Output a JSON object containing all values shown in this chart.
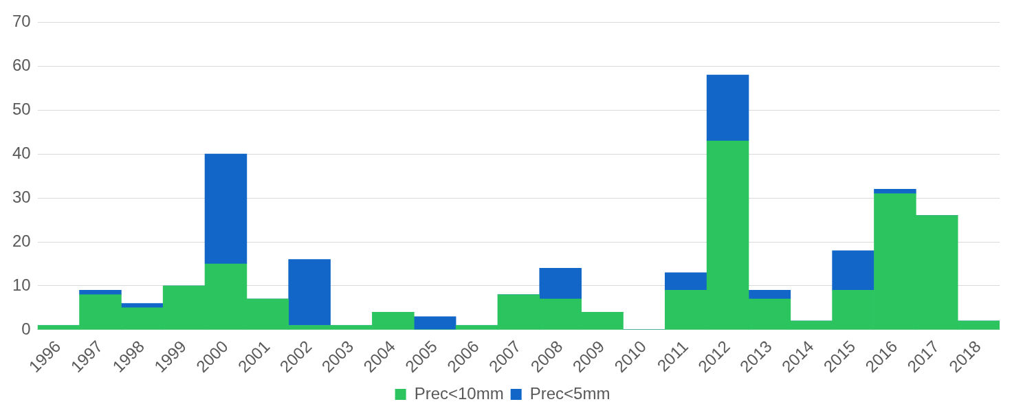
{
  "chart_data": {
    "type": "bar",
    "stacked": true,
    "categories": [
      "1996",
      "1997",
      "1998",
      "1999",
      "2000",
      "2001",
      "2002",
      "2003",
      "2004",
      "2005",
      "2006",
      "2007",
      "2008",
      "2009",
      "2010",
      "2011",
      "2012",
      "2013",
      "2014",
      "2015",
      "2016",
      "2017",
      "2018"
    ],
    "series": [
      {
        "name": "Prec<10mm",
        "color": "#2bc45e",
        "values": [
          1,
          8,
          5,
          10,
          15,
          7,
          1,
          1,
          4,
          0,
          1,
          8,
          7,
          4,
          0,
          9,
          43,
          7,
          2,
          9,
          31,
          26,
          2
        ]
      },
      {
        "name": "Prec<5mm",
        "color": "#1166c8",
        "values": [
          0,
          1,
          1,
          0,
          25,
          0,
          15,
          0,
          0,
          3,
          0,
          0,
          7,
          0,
          0,
          4,
          15,
          2,
          0,
          9,
          1,
          0,
          0
        ]
      }
    ],
    "ylim": [
      0,
      70
    ],
    "yticks": [
      0,
      10,
      20,
      30,
      40,
      50,
      60,
      70
    ],
    "grid": "y",
    "legend": "bottom"
  }
}
